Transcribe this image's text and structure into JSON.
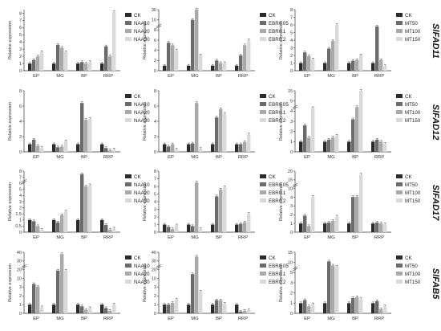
{
  "figure": {
    "stages": [
      "EP",
      "MG",
      "BP",
      "RRP"
    ],
    "treatment_groups": [
      {
        "labels": [
          "CK",
          "NAA10",
          "NAA20",
          "NAA30"
        ]
      },
      {
        "labels": [
          "CK",
          "EBR0.05",
          "EBR0.1",
          "EBR0.2"
        ]
      },
      {
        "labels": [
          "CK",
          "MT50",
          "MT100",
          "MT150"
        ]
      }
    ],
    "genes": [
      "SlFAD11",
      "SlFAD12",
      "SlFAD17",
      "SlFAB5"
    ]
  },
  "colors": {
    "series": [
      "#2b2b2b",
      "#6b6b6b",
      "#a9a9a9",
      "#d9d9d9"
    ],
    "axis": "#333333"
  },
  "chart_data": [
    {
      "type": "bar",
      "row": 0,
      "col": 0,
      "gene": "SlFAD11",
      "group": 0,
      "ylabel": "Relative expression",
      "categories": [
        "EP",
        "MG",
        "BP",
        "RRP"
      ],
      "yticks": [
        0,
        1,
        2,
        3,
        4,
        5,
        6,
        7,
        8
      ],
      "ylim": [
        0,
        8.5
      ],
      "series": [
        {
          "name": "CK",
          "values": [
            1,
            1,
            1,
            1
          ]
        },
        {
          "name": "NAA10",
          "values": [
            1.5,
            3.6,
            1.2,
            3.4
          ]
        },
        {
          "name": "NAA20",
          "values": [
            2.0,
            3.2,
            1.0,
            2.0
          ]
        },
        {
          "name": "NAA30",
          "values": [
            2.6,
            2.6,
            1.2,
            8.2
          ]
        }
      ]
    },
    {
      "type": "bar",
      "row": 0,
      "col": 1,
      "gene": "SlFAD11",
      "group": 1,
      "ylabel": "Relative expression",
      "categories": [
        "EP",
        "MG",
        "BP",
        "RRP"
      ],
      "yticks": [
        0,
        2,
        4,
        6,
        8,
        10,
        30
      ],
      "ylim": [
        0,
        32
      ],
      "break": true,
      "series": [
        {
          "name": "CK",
          "values": [
            1,
            1,
            1,
            1
          ]
        },
        {
          "name": "EBR0.05",
          "values": [
            5.5,
            10.0,
            2.0,
            3.0
          ]
        },
        {
          "name": "EBR0.1",
          "values": [
            5.0,
            31.0,
            1.5,
            5.0
          ]
        },
        {
          "name": "EBR0.2",
          "values": [
            4.0,
            3.0,
            1.5,
            6.0
          ]
        }
      ]
    },
    {
      "type": "bar",
      "row": 0,
      "col": 2,
      "gene": "SlFAD11",
      "group": 2,
      "ylabel": "Relative expression",
      "categories": [
        "EP",
        "MG",
        "BP",
        "RRP"
      ],
      "yticks": [
        0,
        1,
        2,
        3,
        4,
        5,
        6,
        7,
        8
      ],
      "ylim": [
        0,
        8
      ],
      "series": [
        {
          "name": "CK",
          "values": [
            1,
            1,
            1,
            1
          ]
        },
        {
          "name": "MT50",
          "values": [
            2.4,
            2.9,
            1.3,
            5.8
          ]
        },
        {
          "name": "MT100",
          "values": [
            1.9,
            3.9,
            1.4,
            1.4
          ]
        },
        {
          "name": "MT150",
          "values": [
            1.5,
            6.0,
            2.0,
            0.6
          ]
        }
      ]
    },
    {
      "type": "bar",
      "row": 1,
      "col": 0,
      "gene": "SlFAD12",
      "group": 0,
      "ylabel": "Relative expression",
      "categories": [
        "EP",
        "MG",
        "BP",
        "RRP"
      ],
      "yticks": [
        0,
        2,
        4,
        6,
        8
      ],
      "ylim": [
        0,
        8
      ],
      "series": [
        {
          "name": "CK",
          "values": [
            1,
            1,
            1,
            1
          ]
        },
        {
          "name": "NAA10",
          "values": [
            1.6,
            0.6,
            6.4,
            0.5
          ]
        },
        {
          "name": "NAA20",
          "values": [
            0.8,
            0.7,
            4.2,
            0.2
          ]
        },
        {
          "name": "NAA30",
          "values": [
            0.5,
            1.4,
            4.3,
            0.3
          ]
        }
      ]
    },
    {
      "type": "bar",
      "row": 1,
      "col": 1,
      "gene": "SlFAD12",
      "group": 1,
      "ylabel": "Relative expression",
      "categories": [
        "EP",
        "MG",
        "BP",
        "RRP"
      ],
      "yticks": [
        0,
        2,
        4,
        6,
        8
      ],
      "ylim": [
        0,
        8
      ],
      "series": [
        {
          "name": "CK",
          "values": [
            1,
            1,
            1,
            1
          ]
        },
        {
          "name": "EBR0.05",
          "values": [
            0.7,
            1.1,
            4.5,
            1.0
          ]
        },
        {
          "name": "EBR0.1",
          "values": [
            1.0,
            6.4,
            5.6,
            1.3
          ]
        },
        {
          "name": "EBR0.2",
          "values": [
            0.3,
            0.4,
            5.0,
            2.3
          ]
        }
      ]
    },
    {
      "type": "bar",
      "row": 1,
      "col": 2,
      "gene": "SlFAD12",
      "group": 2,
      "ylabel": "Relative expression",
      "categories": [
        "EP",
        "MG",
        "BP",
        "RRP"
      ],
      "yticks": [
        0,
        1,
        2,
        3,
        4,
        5,
        15
      ],
      "ylim": [
        0,
        16
      ],
      "break": true,
      "series": [
        {
          "name": "CK",
          "values": [
            1,
            1,
            1,
            1
          ]
        },
        {
          "name": "MT50",
          "values": [
            2.6,
            1.2,
            3.2,
            1.2
          ]
        },
        {
          "name": "MT100",
          "values": [
            1.4,
            1.4,
            4.4,
            1.0
          ]
        },
        {
          "name": "MT150",
          "values": [
            4.3,
            1.6,
            15.0,
            0.8
          ]
        }
      ]
    },
    {
      "type": "bar",
      "row": 2,
      "col": 0,
      "gene": "SlFAD17",
      "group": 0,
      "ylabel": "Relative expression",
      "categories": [
        "EP",
        "MG",
        "BP",
        "RRP"
      ],
      "yticks": [
        0,
        0.5,
        1.0,
        1.5,
        2.0,
        3,
        4,
        5,
        6,
        7,
        8
      ],
      "ylim": [
        0,
        8
      ],
      "break": true,
      "series": [
        {
          "name": "CK",
          "values": [
            1,
            1,
            1,
            1
          ]
        },
        {
          "name": "NAA10",
          "values": [
            0.9,
            0.8,
            7.5,
            0.6
          ]
        },
        {
          "name": "NAA20",
          "values": [
            0.5,
            1.4,
            5.5,
            0.2
          ]
        },
        {
          "name": "NAA30",
          "values": [
            0.2,
            1.7,
            5.7,
            0.3
          ]
        }
      ]
    },
    {
      "type": "bar",
      "row": 2,
      "col": 1,
      "gene": "SlFAD17",
      "group": 1,
      "ylabel": "Relative expression",
      "categories": [
        "EP",
        "MG",
        "BP",
        "RRP"
      ],
      "yticks": [
        0,
        1,
        2,
        3,
        4,
        5,
        6,
        7,
        8
      ],
      "ylim": [
        0,
        8
      ],
      "series": [
        {
          "name": "CK",
          "values": [
            1,
            1,
            1,
            1
          ]
        },
        {
          "name": "EBR0.05",
          "values": [
            0.7,
            0.8,
            4.7,
            1.1
          ]
        },
        {
          "name": "EBR0.1",
          "values": [
            0.4,
            6.5,
            5.6,
            1.3
          ]
        },
        {
          "name": "EBR0.2",
          "values": [
            0.9,
            0.4,
            5.9,
            2.4
          ]
        }
      ]
    },
    {
      "type": "bar",
      "row": 2,
      "col": 2,
      "gene": "SlFAD17",
      "group": 2,
      "ylabel": "Relative expression",
      "categories": [
        "EP",
        "MG",
        "BP",
        "RRP"
      ],
      "yticks": [
        0,
        1,
        2,
        3,
        4,
        10,
        15,
        20
      ],
      "ylim": [
        0,
        20
      ],
      "break": true,
      "series": [
        {
          "name": "CK",
          "values": [
            1,
            1,
            1,
            1
          ]
        },
        {
          "name": "MT50",
          "values": [
            1.9,
            1.1,
            4.2,
            1.1
          ]
        },
        {
          "name": "MT100",
          "values": [
            0.7,
            1.3,
            4.4,
            1.0
          ]
        },
        {
          "name": "MT150",
          "values": [
            4.4,
            1.8,
            18.0,
            0.9
          ]
        }
      ]
    },
    {
      "type": "bar",
      "row": 3,
      "col": 0,
      "gene": "SlFAB5",
      "group": 0,
      "ylabel": "Relative expression",
      "categories": [
        "EP",
        "MG",
        "BP",
        "RRP"
      ],
      "yticks": [
        0,
        1,
        2,
        3,
        10,
        20,
        30,
        40
      ],
      "ylim": [
        0,
        40
      ],
      "break": true,
      "series": [
        {
          "name": "CK",
          "values": [
            1,
            1,
            1,
            1
          ]
        },
        {
          "name": "NAA10",
          "values": [
            5.5,
            19.0,
            0.8,
            0.6
          ]
        },
        {
          "name": "NAA20",
          "values": [
            3.5,
            38.0,
            0.4,
            0.3
          ]
        },
        {
          "name": "NAA30",
          "values": [
            0.7,
            19.0,
            0.6,
            1.0
          ]
        }
      ]
    },
    {
      "type": "bar",
      "row": 3,
      "col": 1,
      "gene": "SlFAB5",
      "group": 1,
      "ylabel": "Relative expression",
      "categories": [
        "EP",
        "MG",
        "BP",
        "RRP"
      ],
      "yticks": [
        0,
        1,
        2,
        3,
        10,
        20,
        30,
        40
      ],
      "ylim": [
        0,
        40
      ],
      "break": true,
      "series": [
        {
          "name": "CK",
          "values": [
            1,
            1,
            1,
            1
          ]
        },
        {
          "name": "EBR0.05",
          "values": [
            1.0,
            15.0,
            1.5,
            0.2
          ]
        },
        {
          "name": "EBR0.1",
          "values": [
            1.2,
            35.0,
            1.5,
            0.3
          ]
        },
        {
          "name": "EBR0.2",
          "values": [
            1.6,
            2.5,
            1.1,
            0.4
          ]
        }
      ]
    },
    {
      "type": "bar",
      "row": 3,
      "col": 2,
      "gene": "SlFAB5",
      "group": 2,
      "ylabel": "Relative expression",
      "categories": [
        "EP",
        "MG",
        "BP",
        "RRP"
      ],
      "yticks": [
        0,
        1,
        2,
        3,
        5,
        10,
        15
      ],
      "ylim": [
        0,
        15
      ],
      "break": true,
      "series": [
        {
          "name": "CK",
          "values": [
            1,
            1,
            1,
            1
          ]
        },
        {
          "name": "MT50",
          "values": [
            1.3,
            10.5,
            1.5,
            1.2
          ]
        },
        {
          "name": "MT100",
          "values": [
            0.7,
            8.5,
            1.6,
            0.4
          ]
        },
        {
          "name": "MT150",
          "values": [
            0.9,
            8.0,
            1.4,
            0.7
          ]
        }
      ]
    }
  ]
}
